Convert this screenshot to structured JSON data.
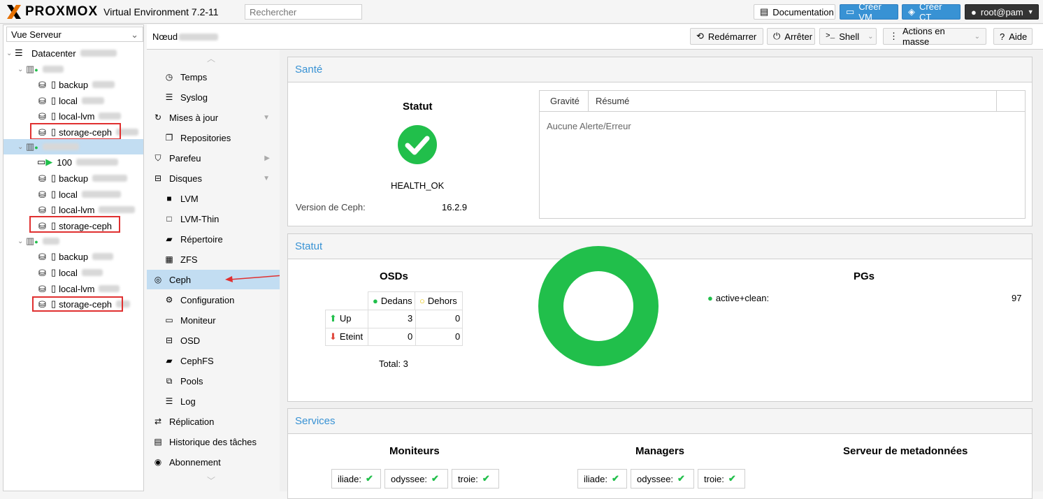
{
  "topbar": {
    "brand": "PROXMOX",
    "product": "Virtual Environment 7.2-11",
    "search_placeholder": "Rechercher",
    "documentation": "Documentation",
    "create_vm": "Créer VM",
    "create_ct": "Créer CT",
    "user": "root@pam"
  },
  "tree": {
    "view": "Vue Serveur",
    "datacenter": "Datacenter",
    "items": [
      "backup",
      "local",
      "local-lvm",
      "storage-ceph",
      "100",
      "backup",
      "local",
      "local-lvm",
      "storage-ceph",
      "backup",
      "local",
      "local-lvm",
      "storage-ceph"
    ]
  },
  "header": {
    "node_label": "Nœud",
    "reboot": "Redémarrer",
    "shutdown": "Arrêter",
    "shell": "Shell",
    "bulk": "Actions en masse",
    "help": "Aide"
  },
  "nav": {
    "items": [
      "Temps",
      "Syslog",
      "Mises à jour",
      "Repositories",
      "Parefeu",
      "Disques",
      "LVM",
      "LVM-Thin",
      "Répertoire",
      "ZFS",
      "Ceph",
      "Configuration",
      "Moniteur",
      "OSD",
      "CephFS",
      "Pools",
      "Log",
      "Réplication",
      "Historique des tâches",
      "Abonnement"
    ]
  },
  "health": {
    "title": "Santé",
    "status_label": "Statut",
    "status": "HEALTH_OK",
    "version_label": "Version de Ceph:",
    "version": "16.2.9",
    "col_severity": "Gravité",
    "col_summary": "Résumé",
    "empty": "Aucune Alerte/Erreur"
  },
  "status": {
    "title": "Statut",
    "osds_title": "OSDs",
    "in": "Dedans",
    "out": "Dehors",
    "up": "Up",
    "down": "Eteint",
    "up_in": "3",
    "up_out": "0",
    "down_in": "0",
    "down_out": "0",
    "total": "Total: 3",
    "pgs_title": "PGs",
    "pg_state": "active+clean:",
    "pg_count": "97"
  },
  "services": {
    "title": "Services",
    "monitors_title": "Moniteurs",
    "managers_title": "Managers",
    "mds_title": "Serveur de metadonnées",
    "monitors": [
      "iliade:",
      "odyssee:",
      "troie:"
    ],
    "managers": [
      "iliade:",
      "odyssee:",
      "troie:"
    ]
  },
  "colors": {
    "accent": "#3892d4",
    "ok": "#21bf4b",
    "selected": "#c2ddf2",
    "annotation": "#e03030"
  }
}
